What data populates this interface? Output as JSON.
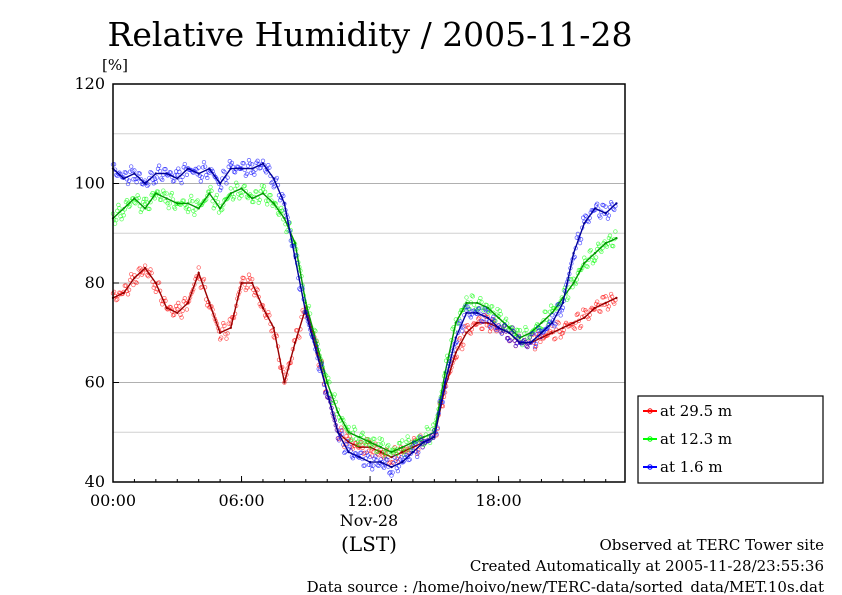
{
  "chart_data": {
    "type": "line",
    "title": "Relative Humidity / 2005-11-28",
    "ylabel": "[%]",
    "xlabel": "(LST)",
    "date_label": "Nov-28",
    "ylim": [
      40,
      120
    ],
    "xlim": [
      0,
      23.9
    ],
    "grid": true,
    "legend_position": "right",
    "y_ticks": [
      "40",
      "60",
      "80",
      "100",
      "120"
    ],
    "x_ticks": [
      "00:00",
      "06:00",
      "12:00",
      "18:00"
    ],
    "x": [
      0,
      0.5,
      1,
      1.5,
      2,
      2.5,
      3,
      3.5,
      4,
      4.5,
      5,
      5.5,
      6,
      6.5,
      7,
      7.5,
      8,
      8.5,
      9,
      9.5,
      10,
      10.5,
      11,
      11.5,
      12,
      12.5,
      13,
      13.5,
      14,
      14.5,
      15,
      15.5,
      16,
      16.5,
      17,
      17.5,
      18,
      18.5,
      19,
      19.5,
      20,
      20.5,
      21,
      21.5,
      22,
      22.5,
      23,
      23.5
    ],
    "series": [
      {
        "name": "at 29.5 m",
        "color": "#ff0000",
        "values": [
          77,
          78,
          81,
          83,
          80,
          75,
          74,
          76,
          82,
          76,
          70,
          71,
          80,
          80,
          75,
          71,
          60,
          68,
          75,
          67,
          58,
          50,
          48,
          47,
          47,
          46,
          45,
          46,
          47,
          48,
          49,
          59,
          66,
          70,
          72,
          72,
          71,
          70,
          68,
          68,
          69,
          70,
          71,
          72,
          73,
          75,
          76,
          77
        ]
      },
      {
        "name": "at 12.3 m",
        "color": "#00ff00",
        "values": [
          93,
          95,
          97,
          95,
          98,
          97,
          96,
          96,
          95,
          98,
          95,
          98,
          99,
          97,
          98,
          96,
          93,
          88,
          76,
          68,
          60,
          54,
          50,
          49,
          48,
          47,
          46,
          47,
          48,
          49,
          50,
          62,
          72,
          76,
          76,
          75,
          73,
          71,
          69,
          70,
          72,
          74,
          77,
          80,
          84,
          86,
          88,
          89
        ]
      },
      {
        "name": "at 1.6 m",
        "color": "#0000ff",
        "values": [
          103,
          101,
          102,
          100,
          102,
          102,
          101,
          103,
          102,
          103,
          100,
          103,
          103,
          103,
          104,
          101,
          96,
          85,
          74,
          66,
          58,
          50,
          46,
          45,
          44,
          44,
          43,
          44,
          46,
          48,
          49,
          60,
          69,
          74,
          74,
          73,
          71,
          70,
          68,
          68,
          70,
          72,
          76,
          86,
          92,
          95,
          94,
          96
        ]
      }
    ]
  },
  "footer": {
    "line1": "Observed at TERC Tower site",
    "line2": "Created Automatically at 2005-11-28/23:55:36",
    "line3": "Data source : /home/hoivo/new/TERC-data/sorted_data/MET.10s.dat"
  }
}
